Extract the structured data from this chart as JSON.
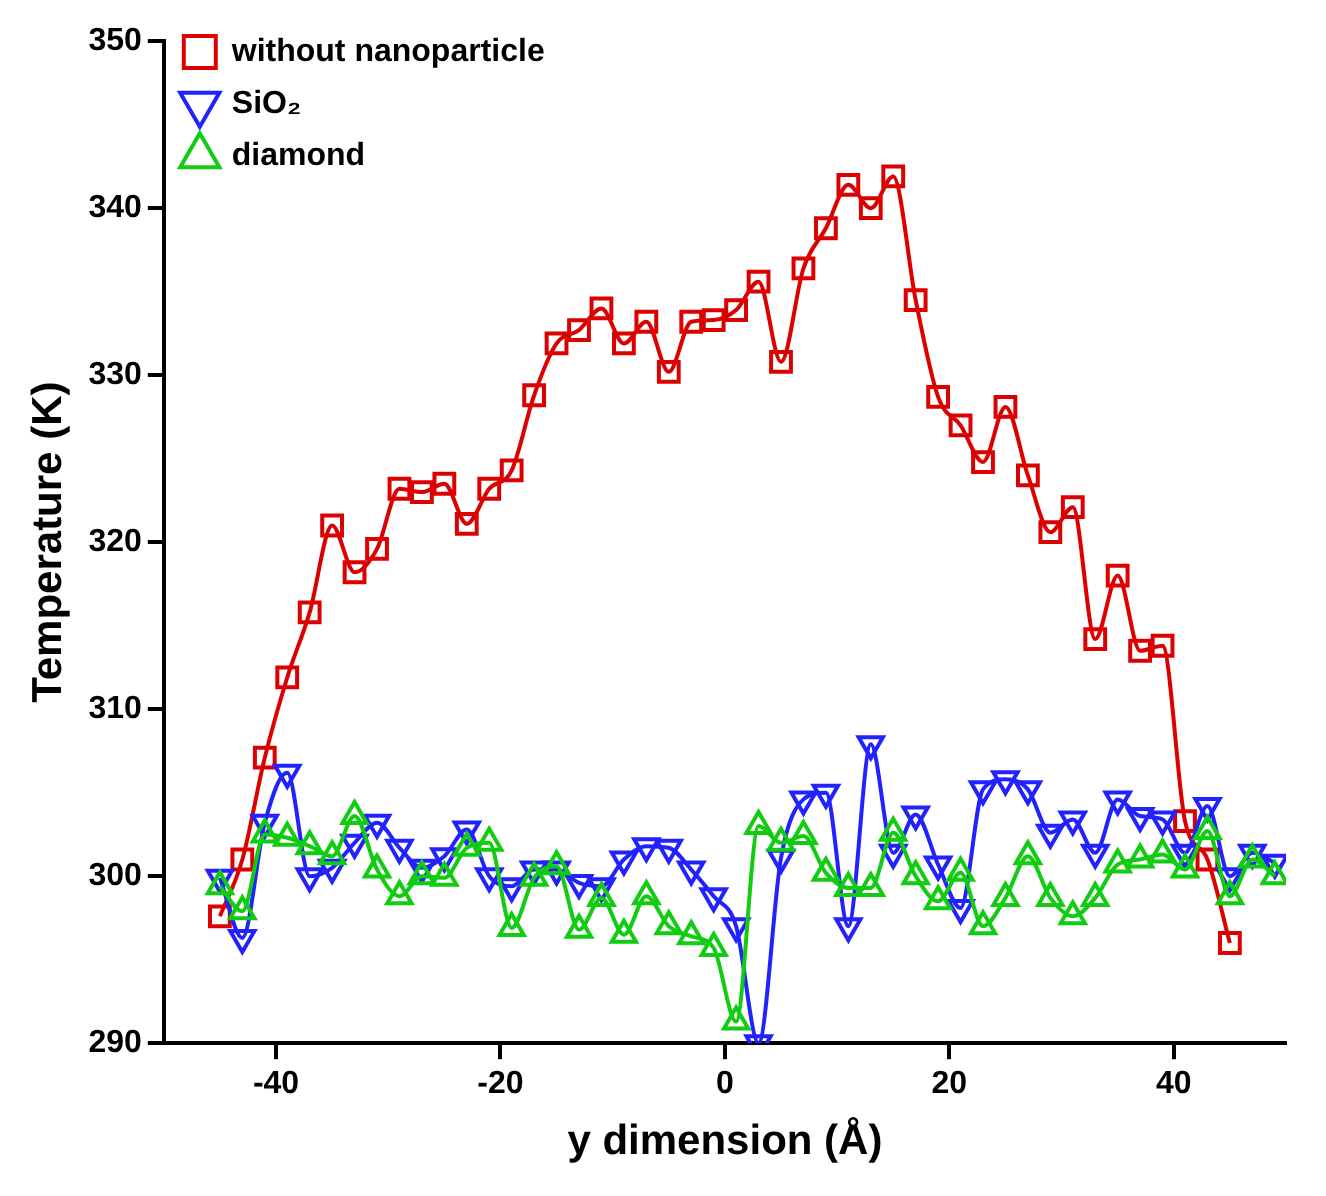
{
  "chart_data": {
    "type": "line",
    "xlabel": "y dimension (Å)",
    "ylabel": "Temperature (K)",
    "xlim": [
      -50,
      50
    ],
    "xticks": [
      -40,
      -20,
      0,
      20,
      40
    ],
    "ylim": [
      290,
      350
    ],
    "yticks": [
      290,
      300,
      310,
      320,
      330,
      340,
      350
    ],
    "grid": false,
    "legend": "top left",
    "line_style": "solid",
    "series": [
      {
        "name": "without nanoparticle",
        "color": "#dd0000",
        "marker": "square",
        "x": [
          -45,
          -43,
          -41,
          -39,
          -37,
          -35,
          -33,
          -31,
          -29,
          -27,
          -25,
          -23,
          -21,
          -19,
          -17,
          -15,
          -13,
          -11,
          -9,
          -7,
          -5,
          -3,
          -1,
          1,
          3,
          5,
          7,
          9,
          11,
          13,
          15,
          17,
          19,
          21,
          23,
          25,
          27,
          29,
          31,
          33,
          35,
          37,
          39,
          41,
          43,
          45
        ],
        "values": [
          297.6,
          301,
          307.1,
          311.9,
          315.8,
          321,
          318.2,
          319.6,
          323.2,
          323,
          323.5,
          321.1,
          323.2,
          324.3,
          328.8,
          331.9,
          332.7,
          334,
          331.9,
          333.2,
          330.2,
          333.2,
          333.3,
          333.9,
          335.6,
          330.8,
          336.4,
          338.8,
          341.4,
          340,
          341.9,
          334.5,
          328.7,
          327,
          324.8,
          328.1,
          324,
          320.6,
          322.1,
          314.2,
          318,
          313.5,
          313.8,
          303.3,
          301,
          296
        ]
      },
      {
        "name": "SiO₂",
        "color": "#2222ff",
        "marker": "triangle-down",
        "x": [
          -45,
          -43,
          -41,
          -39,
          -37,
          -35,
          -33,
          -31,
          -29,
          -27,
          -25,
          -23,
          -21,
          -19,
          -17,
          -15,
          -13,
          -11,
          -9,
          -7,
          -5,
          -3,
          -1,
          1,
          3,
          5,
          7,
          9,
          11,
          13,
          15,
          17,
          19,
          21,
          23,
          25,
          27,
          29,
          31,
          33,
          35,
          37,
          39,
          41,
          43,
          45,
          47,
          49
        ],
        "values": [
          299.9,
          296.3,
          303.2,
          306.2,
          300,
          300.5,
          302,
          303.2,
          301.7,
          300.5,
          301.2,
          302.8,
          300,
          299.4,
          300.4,
          300.4,
          299.6,
          299.4,
          301,
          301.8,
          301.7,
          300.4,
          298.8,
          297,
          290,
          301.1,
          304.6,
          305,
          297,
          307.9,
          301.4,
          303.7,
          300.7,
          298.1,
          305.2,
          305.8,
          305.2,
          302.6,
          303.4,
          301.4,
          304.6,
          303.6,
          303.4,
          301.4,
          304.2,
          300,
          301.4,
          300.8
        ]
      },
      {
        "name": "diamond",
        "color": "#11cc11",
        "marker": "triangle",
        "x": [
          -45,
          -43,
          -41,
          -39,
          -37,
          -35,
          -33,
          -31,
          -29,
          -27,
          -25,
          -23,
          -21,
          -19,
          -17,
          -15,
          -13,
          -11,
          -9,
          -7,
          -5,
          -3,
          -1,
          1,
          3,
          5,
          7,
          9,
          11,
          13,
          15,
          17,
          19,
          21,
          23,
          25,
          27,
          29,
          31,
          33,
          35,
          37,
          39,
          41,
          43,
          45,
          47,
          49
        ],
        "values": [
          299.4,
          297.9,
          302.5,
          302.3,
          301.8,
          301.2,
          303.6,
          300.4,
          298.8,
          300,
          299.9,
          301.7,
          302,
          296.9,
          299.9,
          300.6,
          296.8,
          298.7,
          296.5,
          298.8,
          297,
          296.4,
          295.7,
          291.3,
          303,
          302,
          302.4,
          300.2,
          299.3,
          299.3,
          302.6,
          300,
          298.5,
          300.2,
          297,
          298.7,
          301.2,
          298.7,
          297.6,
          298.7,
          300.7,
          301,
          301.3,
          300.4,
          302.7,
          298.8,
          301,
          300
        ]
      }
    ]
  }
}
